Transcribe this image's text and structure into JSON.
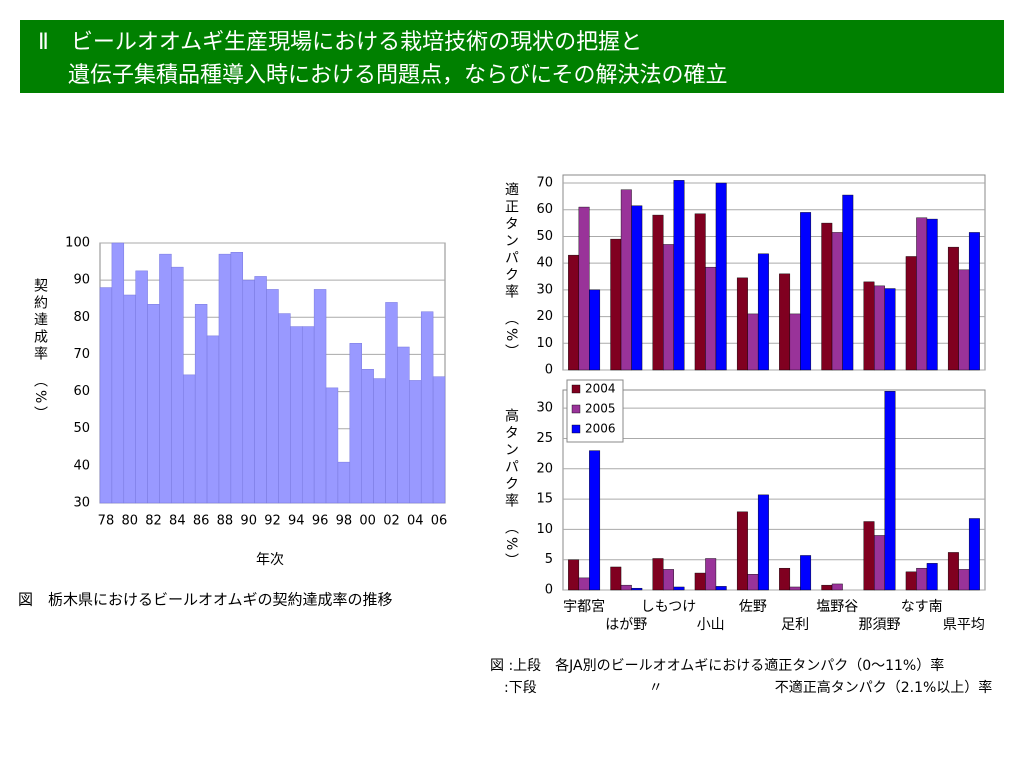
{
  "header": {
    "title": [
      "Ⅱ　ビールオオムギ生産現場における栽培技術の現状の把握と",
      "遺伝子集積品種導入時における問題点，ならびにその解決法の確立"
    ]
  },
  "right_caption": [
    "図 :上段　各JA別のビールオオムギにおける適正タンパク（0～11%）率",
    "　:下段　　　　　　　　〃　　　　　　　　不適正高タンパク（2.1%以上）率"
  ],
  "chart_data": [
    {
      "type": "bar",
      "ylabel": "契約達成率　（%）",
      "xlabel": "年次",
      "caption": "図　栃木県におけるビールオオムギの契約達成率の推移",
      "categories": [
        "78",
        null,
        "80",
        null,
        "82",
        null,
        "84",
        null,
        "86",
        null,
        "88",
        null,
        "90",
        null,
        "92",
        null,
        "94",
        null,
        "96",
        null,
        "98",
        null,
        "00",
        null,
        "02",
        null,
        "04",
        null,
        "06"
      ],
      "values": [
        88,
        100,
        86,
        92.5,
        83.5,
        97,
        93.5,
        64.5,
        83.5,
        75,
        97,
        97.5,
        90,
        91,
        87.5,
        81,
        77.5,
        77.5,
        87.5,
        61,
        41,
        73,
        66,
        63.5,
        84,
        72,
        63,
        81.5,
        64
      ],
      "color": "#9999ff",
      "ylim": [
        30,
        100
      ],
      "yticks": [
        30,
        40,
        50,
        60,
        70,
        80,
        90,
        100
      ],
      "grid": true
    },
    {
      "type": "grouped_bar",
      "ylabel": "適正タンパク率　（%）",
      "series": [
        {
          "color": "#800020",
          "values": [
            43,
            49,
            58,
            58.5,
            34.5,
            36,
            55,
            33,
            42.5,
            46
          ]
        },
        {
          "color": "#993399",
          "values": [
            61,
            67.5,
            47,
            38.5,
            21,
            21,
            51.5,
            31.5,
            57,
            37.5
          ]
        },
        {
          "color": "#0000ff",
          "values": [
            30,
            61.5,
            71,
            70,
            43.5,
            59,
            65.5,
            30.5,
            56.5,
            51.5
          ]
        }
      ],
      "ylim": [
        0,
        73
      ],
      "yticks": [
        0,
        10,
        20,
        30,
        40,
        50,
        60,
        70
      ],
      "grid": true
    },
    {
      "type": "grouped_bar",
      "ylabel": "高タンパク率　（%）",
      "categories": [
        "宇都宮",
        "はが野",
        "しもつけ",
        "小山",
        "佐野",
        "足利",
        "塩野谷",
        "那須野",
        "なす南",
        "県平均"
      ],
      "series": [
        {
          "name": "2004",
          "color": "#800020",
          "values": [
            5,
            3.8,
            5.2,
            2.8,
            12.9,
            3.6,
            0.8,
            11.3,
            3,
            6.2
          ]
        },
        {
          "name": "2005",
          "color": "#993399",
          "values": [
            2,
            0.8,
            3.4,
            5.2,
            2.6,
            0.5,
            1,
            9,
            3.6,
            3.4
          ]
        },
        {
          "name": "2006",
          "color": "#0000ff",
          "values": [
            23,
            0.3,
            0.5,
            0.6,
            15.7,
            5.7,
            0,
            32.8,
            4.4,
            11.8
          ]
        }
      ],
      "ylim": [
        0,
        33
      ],
      "yticks": [
        0,
        5,
        10,
        15,
        20,
        25,
        30
      ],
      "grid": true,
      "legend": "upper left"
    }
  ]
}
